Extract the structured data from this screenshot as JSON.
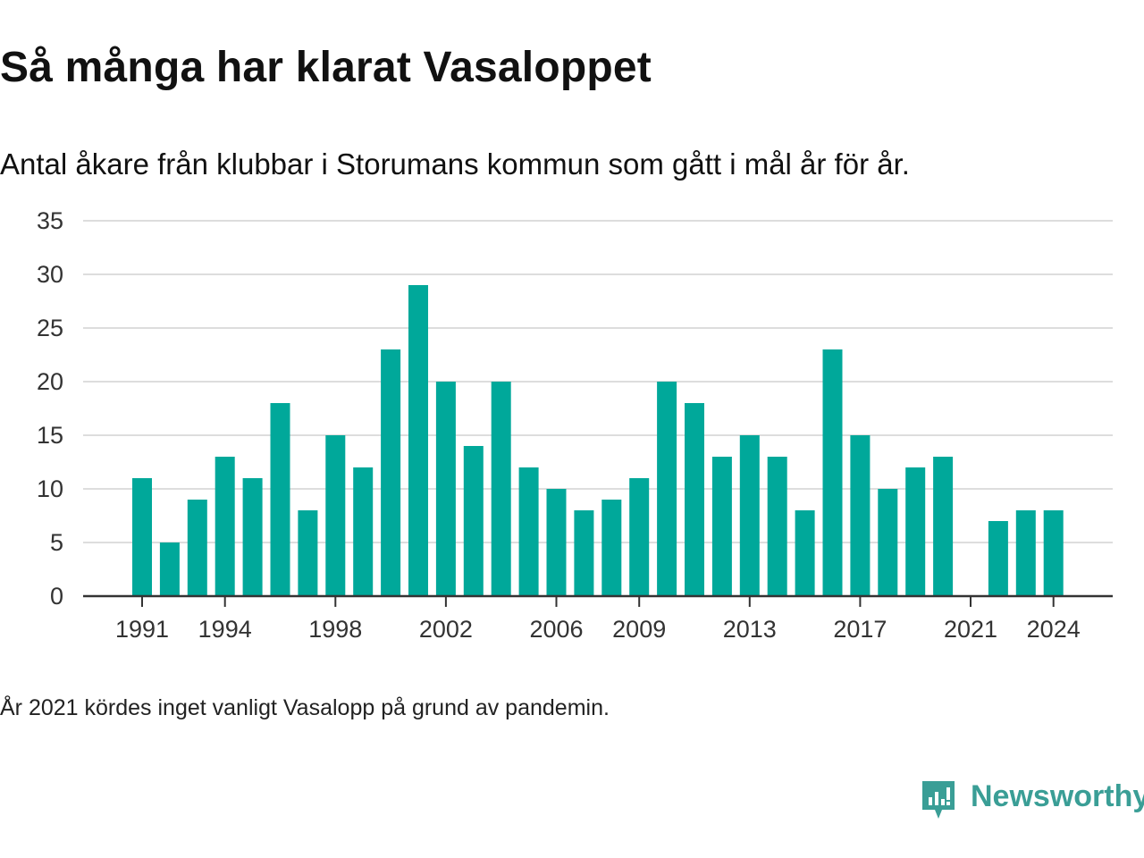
{
  "title": "Så många har klarat Vasaloppet",
  "subtitle": "Antal åkare från klubbar i Storumans kommun som gått i mål år för år.",
  "note": "År 2021 kördes inget vanligt Vasalopp på grund av pandemin.",
  "brand": {
    "name": "Newsworthy",
    "logo_icon": "newsworthy-logo-icon",
    "color": "#3a9e96"
  },
  "chart_data": {
    "type": "bar",
    "title": "Så många har klarat Vasaloppet",
    "subtitle": "Antal åkare från klubbar i Storumans kommun som gått i mål år för år.",
    "xlabel": "",
    "ylabel": "",
    "bar_color": "#00a89a",
    "grid": true,
    "ylim": [
      0,
      35
    ],
    "yticks": [
      0,
      5,
      10,
      15,
      20,
      25,
      30,
      35
    ],
    "xtick_labels": [
      1991,
      1994,
      1998,
      2002,
      2006,
      2009,
      2013,
      2017,
      2021,
      2024
    ],
    "categories": [
      1991,
      1992,
      1993,
      1994,
      1995,
      1996,
      1997,
      1998,
      1999,
      2000,
      2001,
      2002,
      2003,
      2004,
      2005,
      2006,
      2007,
      2008,
      2009,
      2010,
      2011,
      2012,
      2013,
      2014,
      2015,
      2016,
      2017,
      2018,
      2019,
      2020,
      2021,
      2022,
      2023,
      2024
    ],
    "values": [
      11,
      5,
      9,
      13,
      11,
      18,
      8,
      15,
      12,
      23,
      29,
      20,
      14,
      20,
      12,
      10,
      8,
      9,
      11,
      20,
      18,
      13,
      15,
      13,
      8,
      23,
      15,
      10,
      12,
      13,
      0,
      7,
      8,
      8
    ]
  }
}
